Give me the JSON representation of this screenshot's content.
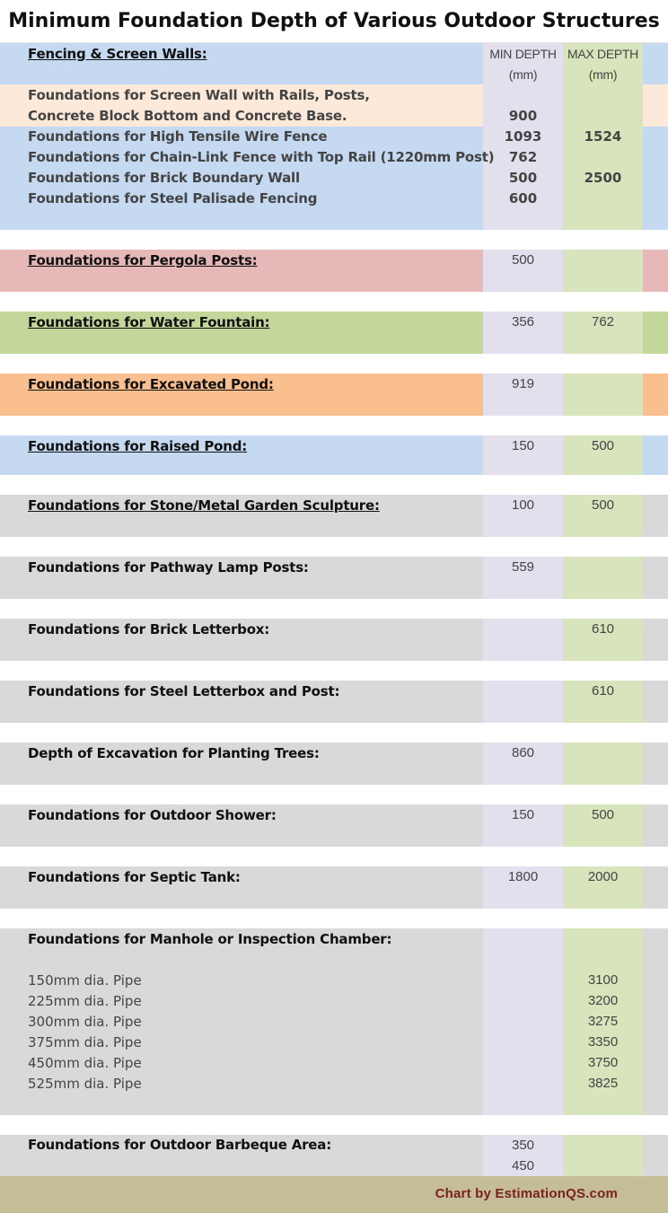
{
  "chart_data": {
    "type": "table",
    "title": "Minimum Foundation Depth of Various Outdoor Structures",
    "columns": {
      "min": [
        "MIN DEPTH",
        "(mm)"
      ],
      "max": [
        "MAX DEPTH",
        "(mm)"
      ]
    },
    "colors": {
      "blue": "#c5d9f1",
      "peach": "#fde9d9",
      "red": "#e6b8b7",
      "green": "#c4d79b",
      "orange": "#fabf8f",
      "gray": "#d9d9d9",
      "min_col": "#e4dfec",
      "max_col": "#d8e4bc",
      "footer": "#c4bd97",
      "credit": "#7b2121"
    },
    "fencing": {
      "heading": "Fencing & Screen Walls:",
      "screen_wall_line1": "Foundations for Screen Wall with Rails, Posts,",
      "screen_wall_line2": "Concrete Block Bottom and Concrete Base.",
      "screen_wall_min": "900",
      "wire_fence": "Foundations for High Tensile Wire Fence",
      "wire_fence_min": "1093",
      "wire_fence_max": "1524",
      "chain_link": "Foundations for Chain-Link Fence with Top Rail (1220mm Post)",
      "chain_link_min": "762",
      "brick_wall": "Foundations for Brick Boundary Wall",
      "brick_wall_min": "500",
      "brick_wall_max": "2500",
      "palisade": "Foundations for Steel Palisade Fencing",
      "palisade_min": "600"
    },
    "pergola": {
      "label": "Foundations for Pergola Posts:",
      "min": "500"
    },
    "fountain": {
      "label": "Foundations for Water Fountain:",
      "min": "356",
      "max": "762"
    },
    "excavated_pond": {
      "label": "Foundations for Excavated Pond:",
      "min": "919"
    },
    "raised_pond": {
      "label": "Foundations for Raised Pond:",
      "min": "150",
      "max": "500"
    },
    "sculpture": {
      "label": "Foundations for Stone/Metal Garden Sculpture:",
      "min": "100",
      "max": "500"
    },
    "lamp_posts": {
      "label": "Foundations for Pathway Lamp Posts:",
      "min": "559"
    },
    "brick_letterbox": {
      "label": "Foundations for Brick Letterbox:",
      "max": "610"
    },
    "steel_letterbox": {
      "label": "Foundations for Steel Letterbox and Post:",
      "max": "610"
    },
    "trees": {
      "label": "Depth of Excavation for Planting Trees:",
      "min": "860"
    },
    "shower": {
      "label": "Foundations for Outdoor Shower:",
      "min": "150",
      "max": "500"
    },
    "septic": {
      "label": "Foundations for Septic Tank:",
      "min": "1800",
      "max": "2000"
    },
    "manhole": {
      "label": "Foundations for Manhole or Inspection Chamber:",
      "pipes": [
        {
          "label": "150mm dia. Pipe",
          "max": "3100"
        },
        {
          "label": "225mm dia. Pipe",
          "max": "3200"
        },
        {
          "label": "300mm dia. Pipe",
          "max": "3275"
        },
        {
          "label": "375mm dia. Pipe",
          "max": "3350"
        },
        {
          "label": "450mm dia. Pipe",
          "max": "3750"
        },
        {
          "label": "525mm dia. Pipe",
          "max": "3825"
        }
      ]
    },
    "barbeque": {
      "label": "Foundations for Outdoor Barbeque Area:",
      "min1": "350",
      "min2": "450"
    },
    "credit": "Chart by EstimationQS.com"
  }
}
